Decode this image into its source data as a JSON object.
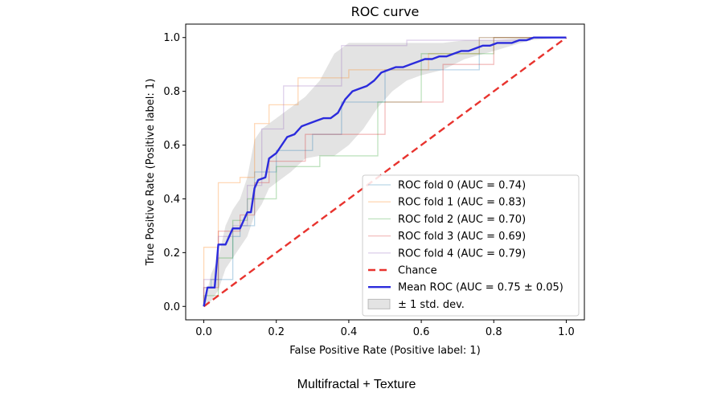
{
  "chart_data": {
    "type": "line",
    "title": "ROC curve",
    "xlabel": "False Positive Rate (Positive label: 1)",
    "ylabel": "True Positive Rate (Positive label: 1)",
    "xlim": [
      -0.05,
      1.05
    ],
    "ylim": [
      -0.05,
      1.05
    ],
    "xticks": [
      "0.0",
      "0.2",
      "0.4",
      "0.6",
      "0.8",
      "1.0"
    ],
    "yticks": [
      "0.0",
      "0.2",
      "0.4",
      "0.6",
      "0.8",
      "1.0"
    ],
    "grid": false,
    "legend_position": "lower-right",
    "series": [
      {
        "name": "ROC fold 0 (AUC = 0.74)",
        "color": "#1f77b4",
        "style": "step",
        "alpha": 0.3,
        "x": [
          0.0,
          0.0,
          0.02,
          0.02,
          0.08,
          0.08,
          0.1,
          0.1,
          0.14,
          0.14,
          0.2,
          0.2,
          0.3,
          0.3,
          0.38,
          0.38,
          0.5,
          0.5,
          0.76,
          0.76,
          1.0
        ],
        "y": [
          0.0,
          0.07,
          0.07,
          0.1,
          0.1,
          0.26,
          0.26,
          0.3,
          0.3,
          0.5,
          0.5,
          0.58,
          0.58,
          0.64,
          0.64,
          0.76,
          0.76,
          0.88,
          0.88,
          1.0,
          1.0
        ]
      },
      {
        "name": "ROC fold 1 (AUC = 0.83)",
        "color": "#ff7f0e",
        "style": "step",
        "alpha": 0.3,
        "x": [
          0.0,
          0.0,
          0.04,
          0.04,
          0.1,
          0.1,
          0.14,
          0.14,
          0.18,
          0.18,
          0.26,
          0.26,
          0.4,
          0.4,
          0.62,
          0.62,
          0.76,
          0.76,
          1.0
        ],
        "y": [
          0.0,
          0.22,
          0.22,
          0.46,
          0.46,
          0.48,
          0.48,
          0.68,
          0.68,
          0.75,
          0.75,
          0.85,
          0.85,
          0.88,
          0.88,
          0.94,
          0.94,
          1.0,
          1.0
        ]
      },
      {
        "name": "ROC fold 2 (AUC = 0.70)",
        "color": "#2ca02c",
        "style": "step",
        "alpha": 0.3,
        "x": [
          0.0,
          0.0,
          0.04,
          0.04,
          0.08,
          0.08,
          0.12,
          0.12,
          0.2,
          0.2,
          0.32,
          0.32,
          0.48,
          0.48,
          0.6,
          0.6,
          0.8,
          0.8,
          1.0
        ],
        "y": [
          0.0,
          0.04,
          0.04,
          0.18,
          0.18,
          0.32,
          0.32,
          0.4,
          0.4,
          0.52,
          0.52,
          0.56,
          0.56,
          0.76,
          0.76,
          0.94,
          0.94,
          1.0,
          1.0
        ]
      },
      {
        "name": "ROC fold 3 (AUC = 0.69)",
        "color": "#d62728",
        "style": "step",
        "alpha": 0.3,
        "x": [
          0.0,
          0.0,
          0.04,
          0.04,
          0.1,
          0.1,
          0.14,
          0.14,
          0.18,
          0.18,
          0.28,
          0.28,
          0.5,
          0.5,
          0.66,
          0.66,
          0.8,
          0.8,
          1.0
        ],
        "y": [
          0.0,
          0.07,
          0.07,
          0.28,
          0.28,
          0.34,
          0.34,
          0.46,
          0.46,
          0.54,
          0.54,
          0.64,
          0.64,
          0.76,
          0.76,
          0.9,
          0.9,
          1.0,
          1.0
        ]
      },
      {
        "name": "ROC fold 4 (AUC = 0.79)",
        "color": "#9467bd",
        "style": "step",
        "alpha": 0.3,
        "x": [
          0.0,
          0.0,
          0.04,
          0.04,
          0.08,
          0.08,
          0.12,
          0.12,
          0.16,
          0.16,
          0.22,
          0.22,
          0.38,
          0.38,
          0.56,
          0.56,
          0.9,
          0.9,
          1.0
        ],
        "y": [
          0.0,
          0.1,
          0.1,
          0.26,
          0.26,
          0.3,
          0.3,
          0.45,
          0.45,
          0.66,
          0.66,
          0.82,
          0.82,
          0.97,
          0.97,
          0.99,
          0.99,
          1.0,
          1.0
        ]
      },
      {
        "name": "Chance",
        "color": "#e8332e",
        "style": "dashed",
        "alpha": 1.0,
        "x": [
          0.0,
          1.0
        ],
        "y": [
          0.0,
          1.0
        ]
      },
      {
        "name": "Mean ROC (AUC = 0.75 ± 0.05)",
        "color": "#2b2bdc",
        "style": "bold",
        "alpha": 1.0,
        "x": [
          0.0,
          0.01,
          0.03,
          0.04,
          0.06,
          0.08,
          0.1,
          0.12,
          0.13,
          0.14,
          0.15,
          0.17,
          0.18,
          0.2,
          0.21,
          0.23,
          0.25,
          0.27,
          0.29,
          0.31,
          0.33,
          0.35,
          0.37,
          0.39,
          0.41,
          0.43,
          0.45,
          0.47,
          0.49,
          0.51,
          0.53,
          0.55,
          0.57,
          0.59,
          0.61,
          0.63,
          0.65,
          0.67,
          0.69,
          0.71,
          0.73,
          0.75,
          0.77,
          0.79,
          0.81,
          0.83,
          0.85,
          0.87,
          0.89,
          0.91,
          0.93,
          0.95,
          0.97,
          1.0
        ],
        "y": [
          0.0,
          0.07,
          0.07,
          0.23,
          0.23,
          0.29,
          0.29,
          0.35,
          0.35,
          0.44,
          0.47,
          0.48,
          0.55,
          0.57,
          0.59,
          0.63,
          0.64,
          0.67,
          0.68,
          0.69,
          0.7,
          0.7,
          0.72,
          0.77,
          0.8,
          0.81,
          0.82,
          0.84,
          0.87,
          0.88,
          0.89,
          0.89,
          0.9,
          0.91,
          0.92,
          0.92,
          0.93,
          0.93,
          0.94,
          0.95,
          0.95,
          0.96,
          0.97,
          0.97,
          0.98,
          0.98,
          0.98,
          0.99,
          0.99,
          1.0,
          1.0,
          1.0,
          1.0,
          1.0
        ]
      },
      {
        "name": "± 1 std. dev.",
        "color": "#b0b0b0",
        "style": "band",
        "alpha": 0.35,
        "x": [
          0.0,
          0.02,
          0.04,
          0.06,
          0.08,
          0.1,
          0.12,
          0.14,
          0.16,
          0.18,
          0.2,
          0.24,
          0.28,
          0.32,
          0.36,
          0.4,
          0.44,
          0.48,
          0.52,
          0.56,
          0.6,
          0.66,
          0.72,
          0.8,
          0.9,
          1.0
        ],
        "lower": [
          0.0,
          0.02,
          0.06,
          0.14,
          0.18,
          0.22,
          0.26,
          0.34,
          0.38,
          0.44,
          0.46,
          0.5,
          0.55,
          0.56,
          0.56,
          0.6,
          0.66,
          0.74,
          0.8,
          0.84,
          0.86,
          0.88,
          0.92,
          0.95,
          0.99,
          1.0
        ],
        "upper": [
          0.0,
          0.12,
          0.18,
          0.3,
          0.36,
          0.4,
          0.48,
          0.62,
          0.66,
          0.68,
          0.7,
          0.74,
          0.78,
          0.84,
          0.94,
          0.98,
          0.98,
          0.98,
          0.98,
          0.98,
          0.98,
          0.98,
          0.99,
          0.99,
          1.0,
          1.0
        ]
      }
    ]
  },
  "caption": "Multifractal + Texture"
}
